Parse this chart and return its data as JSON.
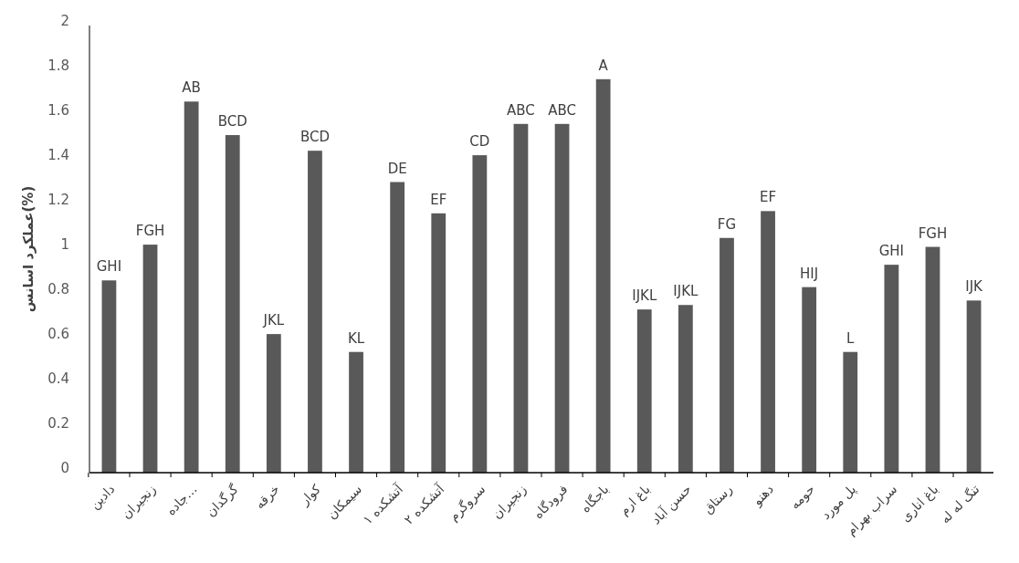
{
  "chart_data": {
    "type": "bar",
    "ylabel": "عملکرد اسانس(%)",
    "categories": [
      "دادین",
      "زنجیران",
      "جاده…",
      "گرگدان",
      "خرقه",
      "کوار",
      "سیمکان",
      "آتشکده ۱",
      "آتشکده ۲",
      "سروگرم",
      "زنجیران",
      "فرودگاه",
      "باجگاه",
      "باغ ارم",
      "حسن آباد",
      "رستاق",
      "دهنو",
      "حومه",
      "پل مورد",
      "سراب بهرام",
      "باغ اناری",
      "تنگ له له"
    ],
    "values": [
      0.86,
      1.02,
      1.66,
      1.51,
      0.62,
      1.44,
      0.54,
      1.3,
      1.16,
      1.42,
      1.56,
      1.56,
      1.76,
      0.73,
      0.75,
      1.05,
      1.17,
      0.83,
      0.54,
      0.93,
      1.01,
      0.77
    ],
    "value_labels": [
      "GHI",
      "FGH",
      "AB",
      "BCD",
      "JKL",
      "BCD",
      "KL",
      "DE",
      "EF",
      "CD",
      "ABC",
      "ABC",
      "A",
      "IJKL",
      "IJKL",
      "FG",
      "EF",
      "HIJ",
      "L",
      "GHI",
      "FGH",
      "IJK"
    ],
    "color": "#595959",
    "ylim": [
      0,
      2
    ],
    "yticks": [
      0,
      0.2,
      0.4,
      0.6,
      0.8,
      1,
      1.2,
      1.4,
      1.6,
      1.8,
      2
    ],
    "grid": false
  }
}
